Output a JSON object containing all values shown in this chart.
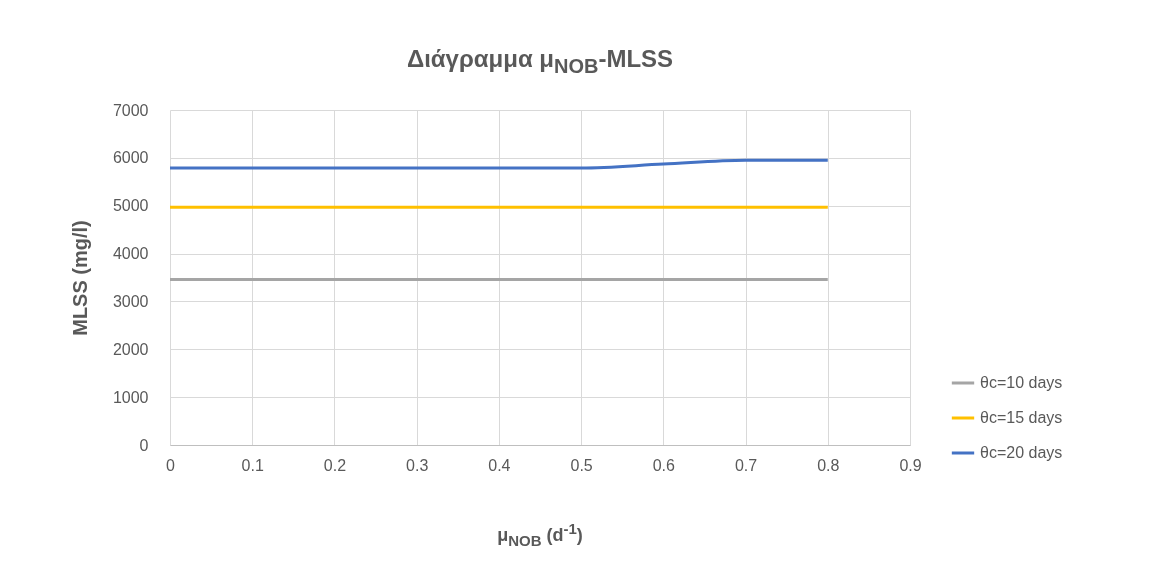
{
  "chart_data": {
    "type": "line",
    "title": "Διάγραμμα μ$_{NOB}$-MLSS",
    "xlabel": "μ$_{NOB}$ (d$^{-1}$)",
    "ylabel": "MLSS (mg/l)",
    "x": [
      0,
      0.1,
      0.2,
      0.3,
      0.4,
      0.5,
      0.6,
      0.7,
      0.8
    ],
    "series": [
      {
        "name": "θc=10 days",
        "color": "#a5a5a5",
        "values": [
          3460,
          3460,
          3460,
          3460,
          3460,
          3460,
          3460,
          3460,
          3460
        ]
      },
      {
        "name": "θc=15 days",
        "color": "#ffc000",
        "values": [
          4970,
          4970,
          4970,
          4970,
          4970,
          4970,
          4970,
          4970,
          4970
        ]
      },
      {
        "name": "θc=20 days",
        "color": "#4472c4",
        "values": [
          5790,
          5790,
          5790,
          5790,
          5790,
          5790,
          5870,
          5950,
          5950
        ]
      }
    ],
    "xlim": [
      0,
      0.9
    ],
    "xticks": [
      0,
      0.1,
      0.2,
      0.3,
      0.4,
      0.5,
      0.6,
      0.7,
      0.8,
      0.9
    ],
    "ylim": [
      0,
      7000
    ],
    "yticks": [
      0,
      1000,
      2000,
      3000,
      4000,
      5000,
      6000,
      7000
    ],
    "grid": true,
    "legend": "right",
    "marker": "none",
    "line_style": "solid"
  }
}
